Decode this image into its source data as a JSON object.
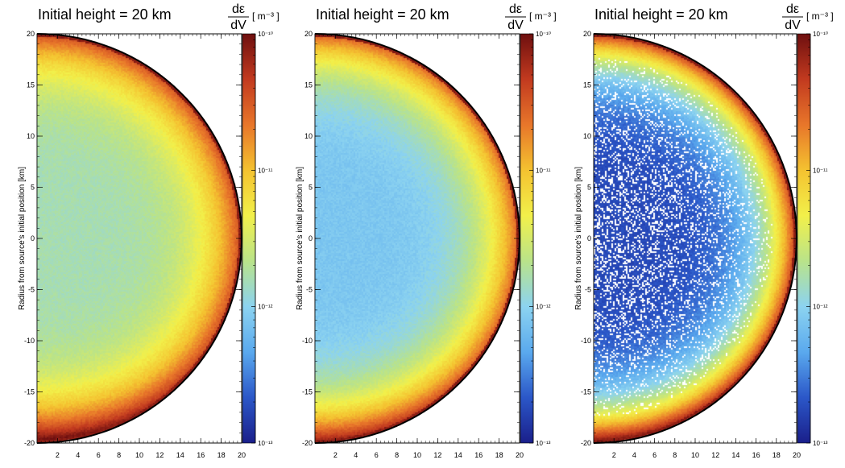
{
  "colorbar": {
    "numerator": "dε",
    "denominator": "dV",
    "unit": "[ m⁻³ ]",
    "labels": [
      "10⁻¹⁰",
      "10⁻¹¹",
      "10⁻¹²",
      "10⁻¹³"
    ],
    "log_range": [
      -13,
      -10
    ],
    "colors": [
      "#1a1f8a",
      "#2b57c8",
      "#5aa9ee",
      "#8cd3f0",
      "#b9e38a",
      "#f2f04a",
      "#f4c230",
      "#e8762a",
      "#c23a1f",
      "#6e0f0f"
    ]
  },
  "chart_data": [
    {
      "type": "heatmap",
      "title": "Initial height = 20 km",
      "ylabel": "Radius from source's initial position [km]",
      "xlabel": "",
      "xlim": [
        0,
        20
      ],
      "ylim": [
        -20,
        20
      ],
      "x_ticks": [
        "2",
        "4",
        "6",
        "8",
        "10",
        "12",
        "14",
        "16",
        "18",
        "20"
      ],
      "y_ticks": [
        "20",
        "15",
        "10",
        "5",
        "0",
        "-5",
        "-10",
        "-15",
        "-20"
      ],
      "color_scale": "log",
      "z_range": [
        1e-13,
        1e-10
      ],
      "profile": {
        "center_log": -11.8,
        "rim_log": -10.4,
        "top_extra": 0.0,
        "bottom_extra": 0.55,
        "speckle": 0.0
      }
    },
    {
      "type": "heatmap",
      "title": "Initial height = 20 km",
      "ylabel": "Radius from source's initial position [km]",
      "xlabel": "",
      "xlim": [
        0,
        20
      ],
      "ylim": [
        -20,
        20
      ],
      "x_ticks": [
        "2",
        "4",
        "6",
        "8",
        "10",
        "12",
        "14",
        "16",
        "18",
        "20"
      ],
      "y_ticks": [
        "20",
        "15",
        "10",
        "5",
        "0",
        "-5",
        "-10",
        "-15",
        "-20"
      ],
      "color_scale": "log",
      "z_range": [
        1e-13,
        1e-10
      ],
      "profile": {
        "center_log": -12.1,
        "rim_log": -10.5,
        "top_extra": 0.0,
        "bottom_extra": 0.45,
        "speckle": 0.0
      }
    },
    {
      "type": "heatmap",
      "title": "Initial height = 20 km",
      "ylabel": "Radius from source's initial position [km]",
      "xlabel": "",
      "xlim": [
        0,
        20
      ],
      "ylim": [
        -20,
        20
      ],
      "x_ticks": [
        "2",
        "4",
        "6",
        "8",
        "10",
        "12",
        "14",
        "16",
        "18",
        "20"
      ],
      "y_ticks": [
        "20",
        "15",
        "10",
        "5",
        "0",
        "-5",
        "-10",
        "-15",
        "-20"
      ],
      "color_scale": "log",
      "z_range": [
        1e-13,
        1e-10
      ],
      "profile": {
        "center_log": -12.75,
        "rim_log": -10.3,
        "top_extra": 0.0,
        "bottom_extra": 0.4,
        "speckle": 0.35
      }
    }
  ]
}
